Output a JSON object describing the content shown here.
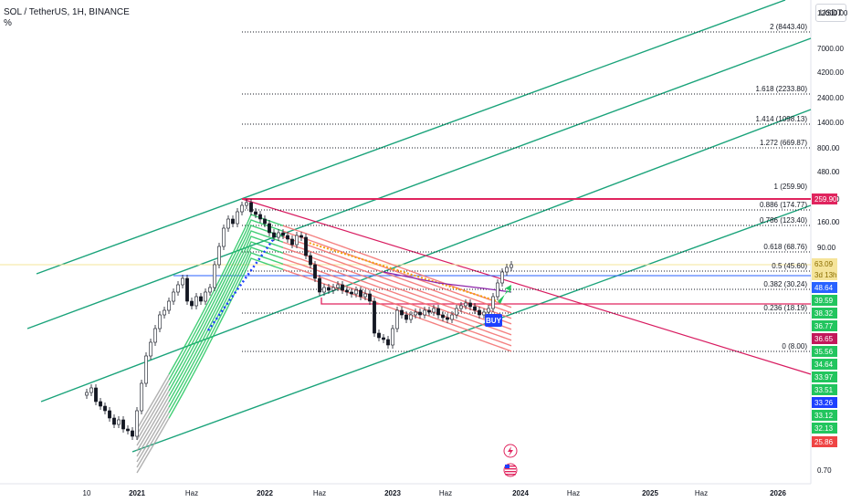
{
  "header": {
    "symbol_line": "SOL / TetherUS, 1H, BINANCE",
    "sub_line": "%"
  },
  "price_axis": {
    "currency_label": "USDT",
    "ticks": [
      "12000.00",
      "7000.00",
      "4200.00",
      "2400.00",
      "1400.00",
      "800.00",
      "480.00",
      "240.00",
      "160.00",
      "90.00",
      "0.70"
    ]
  },
  "time_axis": {
    "ticks": [
      "10",
      "2021",
      "Haz",
      "2022",
      "Haz",
      "2023",
      "Haz",
      "2024",
      "Haz",
      "2025",
      "Haz",
      "2026"
    ]
  },
  "fib_levels": [
    {
      "label": "2 (8443.40)"
    },
    {
      "label": "1.618 (2233.80)"
    },
    {
      "label": "1.414 (1098.13)"
    },
    {
      "label": "1.272 (669.87)"
    },
    {
      "label": "1 (259.90)"
    },
    {
      "label": "0.886 (174.77)"
    },
    {
      "label": "0.786 (123.40)"
    },
    {
      "label": "0.618 (68.76)"
    },
    {
      "label": "0.5 (45.60)"
    },
    {
      "label": "0.382 (30.24)"
    },
    {
      "label": "0.236 (18.19)"
    },
    {
      "label": "0 (8.00)"
    }
  ],
  "price_badges": [
    {
      "text": "259.90",
      "color": "#e0245e"
    },
    {
      "text": "63.09",
      "color": "#f5e49a"
    },
    {
      "text": "3d 13h",
      "color": "#f5e49a"
    },
    {
      "text": "48.64",
      "color": "#2962ff"
    },
    {
      "text": "39.59",
      "color": "#22c55e"
    },
    {
      "text": "38.32",
      "color": "#22c55e"
    },
    {
      "text": "36.77",
      "color": "#22c55e"
    },
    {
      "text": "36.65",
      "color": "#c2185b"
    },
    {
      "text": "35.56",
      "color": "#22c55e"
    },
    {
      "text": "34.64",
      "color": "#22c55e"
    },
    {
      "text": "33.97",
      "color": "#22c55e"
    },
    {
      "text": "33.51",
      "color": "#22c55e"
    },
    {
      "text": "33.26",
      "color": "#1e40ff"
    },
    {
      "text": "33.12",
      "color": "#22c55e"
    },
    {
      "text": "32.13",
      "color": "#22c55e"
    },
    {
      "text": "25.86",
      "color": "#ef4444"
    }
  ],
  "signal": {
    "text": "BUY",
    "color": "#1e40ff"
  },
  "colors": {
    "channel": "#1aa37a",
    "fib_dotted": "#131722",
    "red_level": "#e0245e",
    "blue_level": "#2962ff",
    "downtrend": "#d81b60",
    "ribbon_bull": "#22c55e",
    "ribbon_bear": "#f26b6b",
    "ribbon_neutral": "#9e9e9e",
    "candle": "#131722",
    "highlight_line": "#f5e49a"
  },
  "icons": [
    "lightning-icon",
    "us-flag-icon"
  ]
}
